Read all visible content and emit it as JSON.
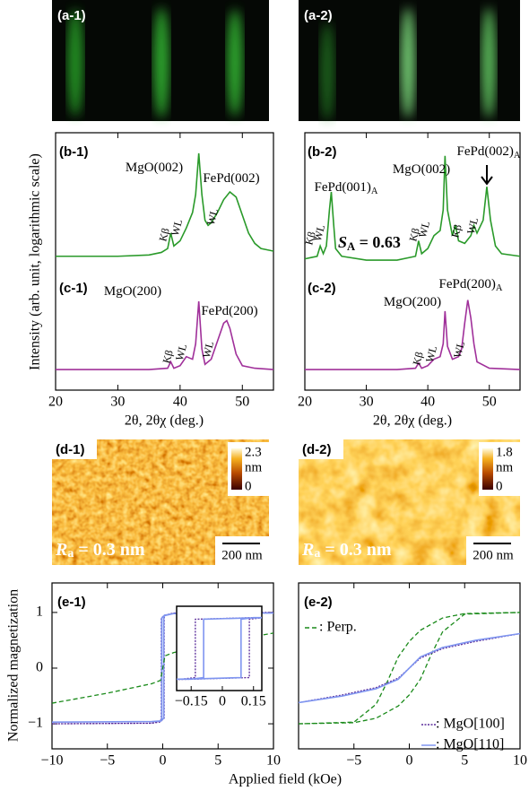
{
  "rheed": [
    {
      "label": "(a-1)"
    },
    {
      "label": "(a-2)"
    }
  ],
  "afm": [
    {
      "label": "(d-1)",
      "colorbar": {
        "max": 2.3,
        "unit": "nm",
        "min": 0
      },
      "roughness": {
        "text": "R",
        "sub": "a",
        "rest": " = 0.3 nm"
      },
      "scalebar": "200 nm"
    },
    {
      "label": "(d-2)",
      "colorbar": {
        "max": 1.8,
        "unit": "nm",
        "min": 0
      },
      "roughness": {
        "text": "R",
        "sub": "a",
        "rest": " = 0.3 nm"
      },
      "scalebar": "200 nm"
    }
  ],
  "chart_data": [
    {
      "type": "line",
      "labels": [
        "(b-1)",
        "(c-1)"
      ],
      "ylabel": "Intensity (arb. unit, logarithmic scale)",
      "xlabel": "2θ, 2θχ (deg.)",
      "xlim": [
        20,
        55
      ],
      "xticks": [
        20,
        30,
        40,
        50
      ],
      "ylim": [
        0,
        10
      ],
      "series": [
        {
          "color": "#2a9a2a",
          "x": [
            20,
            30,
            35,
            37,
            38,
            38.5,
            39,
            40,
            41,
            42,
            42.5,
            43,
            43.5,
            44,
            44.5,
            45,
            46,
            47,
            48,
            49,
            50,
            51,
            52,
            53,
            55
          ],
          "values": [
            5.2,
            5.2,
            5.25,
            5.35,
            5.5,
            6.1,
            5.6,
            5.8,
            6.3,
            6.9,
            7.6,
            9.2,
            7.6,
            6.6,
            6.4,
            6.5,
            6.9,
            7.4,
            7.7,
            7.5,
            6.8,
            6.1,
            5.7,
            5.5,
            5.4
          ]
        },
        {
          "color": "#a0309a",
          "x": [
            20,
            35,
            38,
            38.5,
            39,
            40,
            41,
            42,
            42.5,
            43,
            43.5,
            44,
            45,
            46,
            47,
            47.5,
            48,
            49,
            50,
            52,
            55
          ],
          "values": [
            0.8,
            0.8,
            0.85,
            1.1,
            0.85,
            0.95,
            1.3,
            1.2,
            1.8,
            3.45,
            1.6,
            1.0,
            1.2,
            1.9,
            2.6,
            2.7,
            2.4,
            1.4,
            0.95,
            0.85,
            0.8
          ]
        }
      ],
      "annotations": [
        {
          "text": "MgO(002)"
        },
        {
          "text": "FePd(002)"
        },
        {
          "text": "Kβ"
        },
        {
          "text": "WL"
        },
        {
          "text": "WL"
        },
        {
          "text": "MgO(200)"
        },
        {
          "text": "FePd(200)"
        },
        {
          "text": "Kβ"
        },
        {
          "text": "WL"
        },
        {
          "text": "WL"
        }
      ]
    },
    {
      "type": "line",
      "labels": [
        "(b-2)",
        "(c-2)"
      ],
      "xlabel": "2θ, 2θχ (deg.)",
      "xlim": [
        20,
        55
      ],
      "xticks": [
        20,
        30,
        40,
        50
      ],
      "ylim": [
        0,
        10
      ],
      "series": [
        {
          "color": "#2a9a2a",
          "x": [
            20,
            21,
            22,
            22.5,
            23,
            23.5,
            24,
            24.3,
            24.7,
            25,
            26,
            30,
            35,
            38,
            38.5,
            39,
            40,
            41,
            42,
            42.5,
            42.8,
            43.2,
            44,
            44.5,
            45,
            46,
            47,
            47.5,
            48,
            49,
            49.6,
            50.2,
            51,
            52,
            55
          ],
          "values": [
            5.1,
            5.15,
            5.2,
            5.6,
            5.3,
            5.6,
            7.0,
            7.7,
            6.4,
            5.5,
            5.2,
            5.05,
            5.05,
            5.2,
            5.8,
            5.3,
            5.5,
            6.0,
            6.2,
            7.0,
            9.1,
            7.0,
            6.0,
            6.4,
            5.8,
            5.7,
            6.0,
            6.4,
            6.1,
            6.6,
            7.9,
            6.6,
            5.6,
            5.3,
            5.2
          ]
        },
        {
          "color": "#a0309a",
          "x": [
            20,
            35,
            38,
            38.5,
            39,
            40,
            41,
            42,
            42.5,
            42.8,
            43.2,
            44,
            45,
            45.5,
            46,
            46.5,
            47,
            47.5,
            48,
            50,
            55
          ],
          "values": [
            0.8,
            0.8,
            0.85,
            1.05,
            0.85,
            0.95,
            1.2,
            1.3,
            1.8,
            3.07,
            1.7,
            1.2,
            1.3,
            1.6,
            2.6,
            3.5,
            2.8,
            1.8,
            1.1,
            0.85,
            0.8
          ]
        }
      ],
      "annotations": [
        {
          "text": "FePd(001)",
          "sub": "A"
        },
        {
          "text": "MgO(002)"
        },
        {
          "text": "FePd(002)",
          "sub": "A"
        },
        {
          "text": "Kβ"
        },
        {
          "text": "WL"
        },
        {
          "text": "Kβ"
        },
        {
          "text": "WL"
        },
        {
          "text": "Kβ"
        },
        {
          "text": "WL"
        },
        {
          "text": "S",
          "sub": "A",
          "rest": " = 0.63"
        },
        {
          "text": "MgO(200)"
        },
        {
          "text": "FePd(200)",
          "sub": "A"
        },
        {
          "text": "Kβ"
        },
        {
          "text": "WL"
        },
        {
          "text": "WL"
        }
      ]
    },
    {
      "type": "line",
      "labels": [
        "(e-1)"
      ],
      "ylabel": "Normalized magnetization",
      "xlabel": "Applied field (kOe)",
      "xlim": [
        -10,
        10
      ],
      "xticks": [
        {
          "value": -10,
          "label": "−10"
        },
        {
          "value": -5,
          "label": "−5"
        },
        0,
        5,
        10
      ],
      "ylim": [
        -1.45,
        1.53
      ],
      "yticks": [
        {
          "value": -1,
          "label": "−1"
        },
        0,
        1
      ],
      "series": [
        {
          "color": "#5a2b9a",
          "dash": "2,1.5",
          "x": [
            -10,
            -1,
            -0.3,
            -0.15,
            0.13,
            0.13,
            0.2,
            1,
            10,
            10,
            1,
            0.15,
            -0.13,
            -0.13,
            -0.2,
            -1,
            -10
          ],
          "values": [
            -1,
            -0.99,
            -0.97,
            -0.95,
            -0.9,
            0.9,
            0.95,
            0.99,
            1,
            1,
            0.99,
            0.95,
            0.9,
            -0.9,
            -0.95,
            -0.99,
            -1
          ]
        },
        {
          "color": "#7f95f0",
          "x": [
            -10,
            -1,
            -0.25,
            -0.12,
            0.09,
            0.09,
            0.15,
            1,
            10,
            10,
            1,
            0.12,
            -0.09,
            -0.09,
            -0.15,
            -1,
            -10
          ],
          "values": [
            -0.97,
            -0.96,
            -0.95,
            -0.94,
            -0.9,
            0.9,
            0.95,
            0.98,
            0.99,
            0.99,
            0.98,
            0.94,
            0.9,
            -0.9,
            -0.95,
            -0.96,
            -0.97
          ]
        },
        {
          "color": "#1a8a1a",
          "dash": "5,3",
          "x": [
            -10,
            -5,
            -1,
            -0.2,
            0.2,
            1,
            5,
            10
          ],
          "values": [
            -0.63,
            -0.45,
            -0.28,
            -0.22,
            0.22,
            0.28,
            0.45,
            0.63
          ]
        }
      ],
      "inset": {
        "xlim": [
          -0.22,
          0.19
        ],
        "xticks": [
          {
            "value": -0.15,
            "label": "−0.15"
          },
          0,
          0.15
        ],
        "ylim": [
          -1.3,
          1.3
        ]
      }
    },
    {
      "type": "line",
      "labels": [
        "(e-2)"
      ],
      "xlim": [
        -10,
        10
      ],
      "xticks": [
        {
          "value": -5,
          "label": "−5"
        },
        0,
        5,
        10
      ],
      "ylim": [
        -1.45,
        1.53
      ],
      "series": [
        {
          "name": ": Perp.",
          "color": "#1a8a1a",
          "dash": "5,3",
          "x": [
            -10,
            -5,
            -3,
            -1,
            0,
            1,
            2,
            3,
            5,
            10,
            10,
            5,
            3,
            1,
            0,
            -1,
            -2,
            -3,
            -5,
            -10
          ],
          "values": [
            -1,
            -0.98,
            -0.9,
            -0.68,
            -0.48,
            -0.2,
            0.25,
            0.65,
            0.97,
            1,
            1,
            0.98,
            0.9,
            0.68,
            0.48,
            0.2,
            -0.25,
            -0.65,
            -0.97,
            -1
          ]
        },
        {
          "name": ": MgO[100]",
          "color": "#5a2b9a",
          "dash": "2,1.5",
          "x": [
            -10,
            -6,
            -3,
            -1,
            0,
            1,
            3,
            6,
            10
          ],
          "values": [
            -0.62,
            -0.48,
            -0.35,
            -0.18,
            0,
            0.18,
            0.35,
            0.48,
            0.62
          ]
        },
        {
          "name": ": MgO[110]",
          "color": "#7f95f0",
          "x": [
            -10,
            -6,
            -3,
            -1,
            0,
            1,
            3,
            6,
            10
          ],
          "values": [
            -0.62,
            -0.5,
            -0.37,
            -0.2,
            0,
            0.2,
            0.37,
            0.5,
            0.62
          ]
        }
      ]
    }
  ]
}
